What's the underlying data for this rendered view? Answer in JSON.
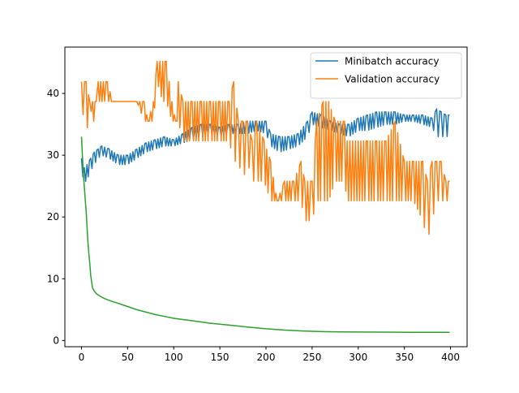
{
  "chart_data": {
    "type": "line",
    "title": "",
    "xlabel": "",
    "ylabel": "",
    "xlim": [
      -18,
      418
    ],
    "ylim": [
      -1,
      47.5
    ],
    "grid": false,
    "legend_position": "top-right",
    "x_ticks": [
      0,
      50,
      100,
      150,
      200,
      250,
      300,
      350,
      400
    ],
    "y_ticks": [
      0,
      10,
      20,
      30,
      40
    ],
    "x_tick_labels": [
      "0",
      "50",
      "100",
      "150",
      "200",
      "250",
      "300",
      "350",
      "400"
    ],
    "y_tick_labels": [
      "0",
      "10",
      "20",
      "30",
      "40"
    ],
    "series": [
      {
        "name": "Minibatch accuracy",
        "color": "#1f77b4",
        "style": "oscillating",
        "points": [
          [
            0,
            27.5,
            29.5
          ],
          [
            3,
            25.5,
            28
          ],
          [
            6,
            26,
            28.5
          ],
          [
            10,
            27.5,
            29.5
          ],
          [
            14,
            28.5,
            30.5
          ],
          [
            18,
            29.5,
            31
          ],
          [
            22,
            30,
            31.5
          ],
          [
            30,
            29.5,
            31
          ],
          [
            40,
            28.5,
            30
          ],
          [
            50,
            28.5,
            30
          ],
          [
            60,
            29.5,
            31
          ],
          [
            70,
            30.5,
            32
          ],
          [
            80,
            31,
            32.5
          ],
          [
            90,
            31.5,
            33
          ],
          [
            100,
            31.5,
            32.5
          ],
          [
            110,
            32,
            33.5
          ],
          [
            120,
            32.5,
            34.5
          ],
          [
            130,
            33,
            35
          ],
          [
            140,
            33.5,
            35
          ],
          [
            150,
            33,
            34.5
          ],
          [
            160,
            33.5,
            35
          ],
          [
            170,
            33.5,
            35
          ],
          [
            180,
            33.5,
            35.5
          ],
          [
            190,
            34,
            35.5
          ],
          [
            200,
            33.5,
            35.5
          ],
          [
            205,
            31.5,
            33.5
          ],
          [
            215,
            30.5,
            33
          ],
          [
            225,
            31,
            33
          ],
          [
            235,
            31.5,
            33.5
          ],
          [
            245,
            33,
            35.5
          ],
          [
            250,
            35,
            37
          ],
          [
            260,
            34.5,
            36.5
          ],
          [
            270,
            34,
            35.5
          ],
          [
            280,
            33.5,
            35
          ],
          [
            290,
            33,
            35
          ],
          [
            300,
            34,
            36
          ],
          [
            310,
            34,
            36.5
          ],
          [
            320,
            34.5,
            37
          ],
          [
            330,
            35,
            37
          ],
          [
            340,
            35,
            37
          ],
          [
            350,
            35.5,
            36.5
          ],
          [
            360,
            35.5,
            36.5
          ],
          [
            370,
            35,
            36.5
          ],
          [
            380,
            34.5,
            36
          ],
          [
            385,
            33,
            37.5
          ],
          [
            390,
            33,
            37
          ],
          [
            395,
            33,
            36.5
          ],
          [
            399,
            33,
            36.5
          ]
        ]
      },
      {
        "name": "Validation accuracy",
        "color": "#ff7f0e",
        "style": "oscillating",
        "points": [
          [
            0,
            38.7,
            41.9
          ],
          [
            5,
            32.3,
            41.9
          ],
          [
            9,
            38.7,
            38.7
          ],
          [
            12,
            35.5,
            38.7
          ],
          [
            16,
            35.5,
            38.7
          ],
          [
            18,
            38.7,
            41.9
          ],
          [
            28,
            38.7,
            41.9
          ],
          [
            34,
            38.7,
            38.7
          ],
          [
            50,
            38.7,
            38.7
          ],
          [
            60,
            38.7,
            38.7
          ],
          [
            68,
            35.5,
            38.7
          ],
          [
            72,
            35.5,
            35.5
          ],
          [
            78,
            35.5,
            38.7
          ],
          [
            82,
            41.9,
            45.2
          ],
          [
            88,
            38.7,
            45.2
          ],
          [
            92,
            38.7,
            45.2
          ],
          [
            98,
            35.5,
            38.7
          ],
          [
            102,
            35.5,
            35.5
          ],
          [
            105,
            35.5,
            41.9
          ],
          [
            110,
            32.3,
            38.7
          ],
          [
            120,
            32.3,
            38.7
          ],
          [
            130,
            32.3,
            38.7
          ],
          [
            140,
            32.3,
            38.7
          ],
          [
            150,
            32.3,
            38.7
          ],
          [
            160,
            32.3,
            38.7
          ],
          [
            165,
            29,
            41.9
          ],
          [
            170,
            29,
            35.5
          ],
          [
            175,
            25.8,
            35.5
          ],
          [
            180,
            29,
            35.5
          ],
          [
            185,
            25.8,
            32.3
          ],
          [
            190,
            25.8,
            35.5
          ],
          [
            198,
            25.8,
            32.3
          ],
          [
            205,
            22.6,
            29
          ],
          [
            212,
            22.6,
            22.6
          ],
          [
            220,
            22.6,
            25.8
          ],
          [
            230,
            22.6,
            25.8
          ],
          [
            238,
            22.6,
            29
          ],
          [
            242,
            19.4,
            25.8
          ],
          [
            250,
            19.4,
            25.8
          ],
          [
            255,
            22.6,
            35.5
          ],
          [
            262,
            22.6,
            38.7
          ],
          [
            268,
            22.6,
            38.7
          ],
          [
            275,
            25.8,
            35.5
          ],
          [
            285,
            25.8,
            35.5
          ],
          [
            288,
            22.6,
            32.3
          ],
          [
            300,
            22.6,
            32.3
          ],
          [
            310,
            22.6,
            32.3
          ],
          [
            320,
            22.6,
            32.3
          ],
          [
            330,
            22.6,
            32.3
          ],
          [
            340,
            22.6,
            35.5
          ],
          [
            350,
            22.6,
            29
          ],
          [
            360,
            22.6,
            29
          ],
          [
            370,
            19.4,
            29
          ],
          [
            375,
            16.1,
            25.8
          ],
          [
            380,
            19.4,
            29
          ],
          [
            385,
            22.6,
            29
          ],
          [
            390,
            22.6,
            29
          ],
          [
            395,
            22.6,
            25.8
          ],
          [
            399,
            22.6,
            25.8
          ]
        ]
      },
      {
        "name": "",
        "color": "#2ca02c",
        "style": "line",
        "points": [
          [
            0,
            33
          ],
          [
            1,
            30
          ],
          [
            2,
            27
          ],
          [
            3,
            25
          ],
          [
            4,
            23
          ],
          [
            5,
            21
          ],
          [
            6,
            18.5
          ],
          [
            7,
            16
          ],
          [
            8,
            14
          ],
          [
            9,
            12.5
          ],
          [
            10,
            10.5
          ],
          [
            11,
            9.5
          ],
          [
            12,
            8.5
          ],
          [
            14,
            8
          ],
          [
            16,
            7.6
          ],
          [
            20,
            7.2
          ],
          [
            25,
            6.8
          ],
          [
            30,
            6.5
          ],
          [
            40,
            6
          ],
          [
            50,
            5.5
          ],
          [
            60,
            5
          ],
          [
            70,
            4.6
          ],
          [
            80,
            4.2
          ],
          [
            90,
            3.9
          ],
          [
            100,
            3.6
          ],
          [
            120,
            3.2
          ],
          [
            140,
            2.8
          ],
          [
            160,
            2.5
          ],
          [
            180,
            2.2
          ],
          [
            200,
            1.9
          ],
          [
            220,
            1.7
          ],
          [
            240,
            1.55
          ],
          [
            260,
            1.45
          ],
          [
            280,
            1.4
          ],
          [
            300,
            1.38
          ],
          [
            320,
            1.36
          ],
          [
            340,
            1.35
          ],
          [
            360,
            1.34
          ],
          [
            380,
            1.33
          ],
          [
            399,
            1.33
          ]
        ]
      }
    ]
  }
}
